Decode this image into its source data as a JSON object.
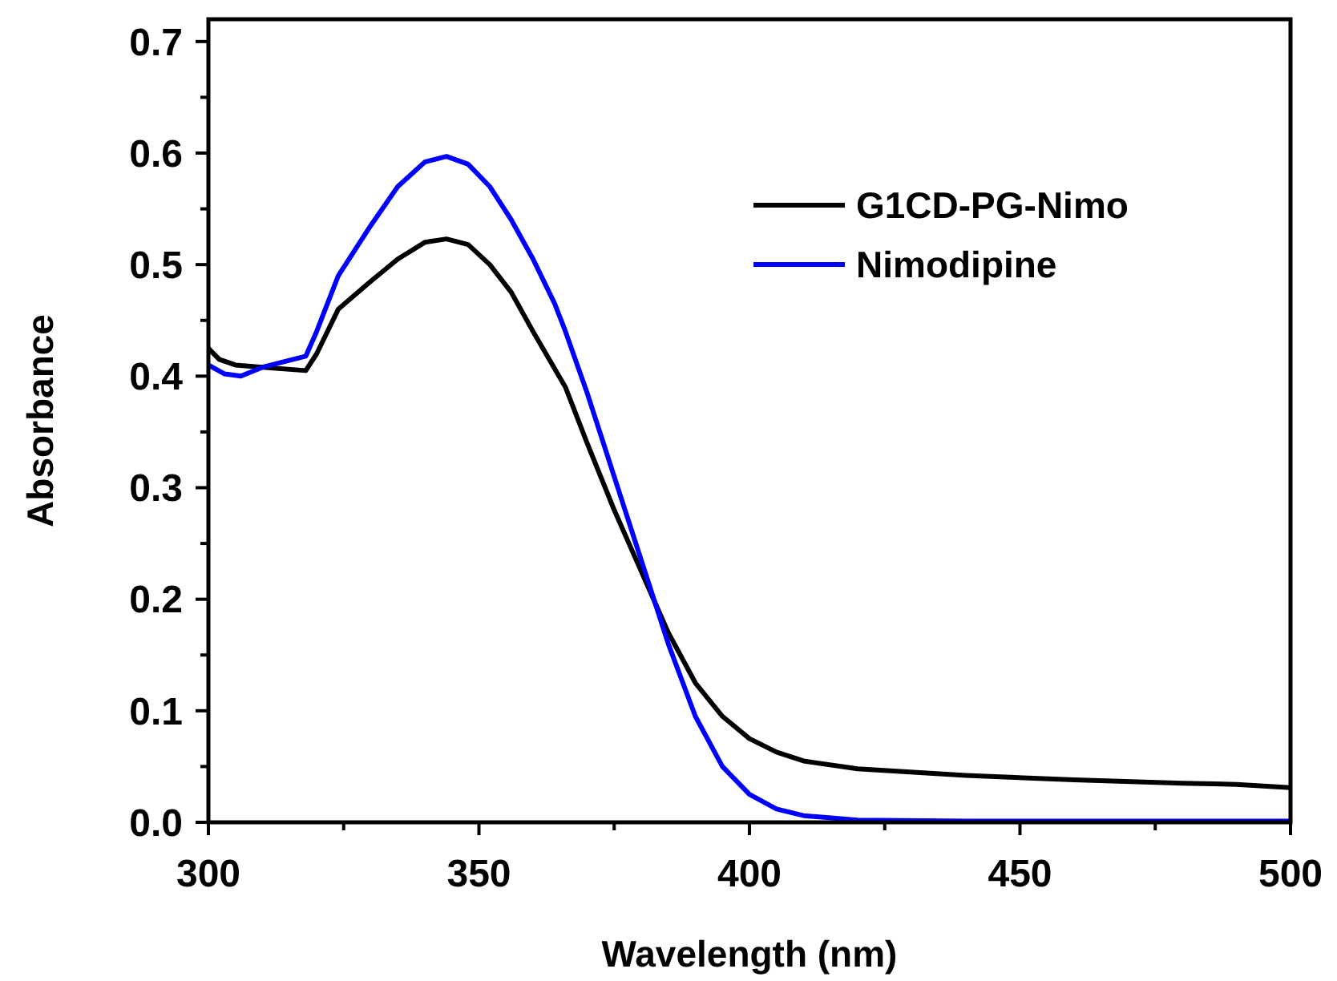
{
  "chart_data": {
    "type": "line",
    "xlabel": "Wavelength (nm)",
    "ylabel": "Absorbance",
    "xlim": [
      300,
      500
    ],
    "xticks": [
      300,
      350,
      400,
      450,
      500
    ],
    "ylim": [
      0,
      0.72
    ],
    "yticks": [
      {
        "value": 0,
        "label": "0.0"
      },
      0.1,
      0.2,
      0.3,
      0.4,
      0.5,
      0.6,
      0.7
    ],
    "grid": false,
    "legend": "top right",
    "marker": "none",
    "line_style": "solid",
    "series": [
      {
        "name": "G1CD-PG-Nimo",
        "color": "#000000",
        "x": [
          300,
          302,
          305,
          310,
          318,
          320,
          324,
          330,
          335,
          340,
          344,
          348,
          352,
          356,
          360,
          363,
          366,
          370,
          375,
          380,
          385,
          390,
          395,
          400,
          405,
          410,
          420,
          440,
          460,
          480,
          490,
          500
        ],
        "values": [
          0.425,
          0.415,
          0.41,
          0.408,
          0.405,
          0.42,
          0.46,
          0.485,
          0.505,
          0.52,
          0.523,
          0.518,
          0.5,
          0.475,
          0.44,
          0.415,
          0.39,
          0.34,
          0.28,
          0.225,
          0.17,
          0.125,
          0.095,
          0.075,
          0.063,
          0.055,
          0.048,
          0.042,
          0.038,
          0.035,
          0.034,
          0.031
        ]
      },
      {
        "name": "Nimodipine",
        "color": "#0000ff",
        "x": [
          300,
          303,
          306,
          310,
          318,
          320,
          324,
          330,
          335,
          340,
          344,
          348,
          352,
          356,
          360,
          364,
          366,
          370,
          375,
          380,
          385,
          390,
          395,
          400,
          405,
          410,
          420,
          440,
          500
        ],
        "values": [
          0.41,
          0.402,
          0.4,
          0.408,
          0.418,
          0.44,
          0.49,
          0.535,
          0.57,
          0.592,
          0.597,
          0.59,
          0.57,
          0.54,
          0.505,
          0.465,
          0.44,
          0.385,
          0.31,
          0.235,
          0.16,
          0.095,
          0.05,
          0.025,
          0.012,
          0.006,
          0.002,
          0.001,
          0.001
        ]
      }
    ]
  }
}
